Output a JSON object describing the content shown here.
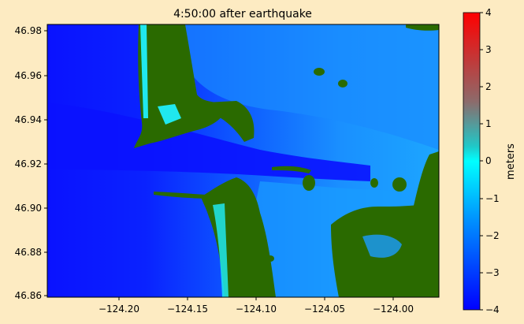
{
  "title": "4:50:00 after earthquake",
  "axes": {
    "x_ticks": [
      "−124.20",
      "−124.15",
      "−124.10",
      "−124.05",
      "−124.00"
    ],
    "y_ticks": [
      "46.98",
      "46.96",
      "46.94",
      "46.92",
      "46.90",
      "46.88",
      "46.86"
    ]
  },
  "colorbar": {
    "label": "meters",
    "ticks": [
      "4",
      "3",
      "2",
      "1",
      "0",
      "−1",
      "−2",
      "−3",
      "−4"
    ],
    "colors": [
      "#ff0000",
      "#8c6b6b",
      "#20c8c8",
      "#00ffff",
      "#0090ff",
      "#0000ff"
    ]
  },
  "map": {
    "land_color": "#2a6a00",
    "deep_water_color": "#0a1aff",
    "shallow_water_color": "#1a9cff",
    "cyan_color": "#20e8ee",
    "background_color": "#fdebc2"
  }
}
